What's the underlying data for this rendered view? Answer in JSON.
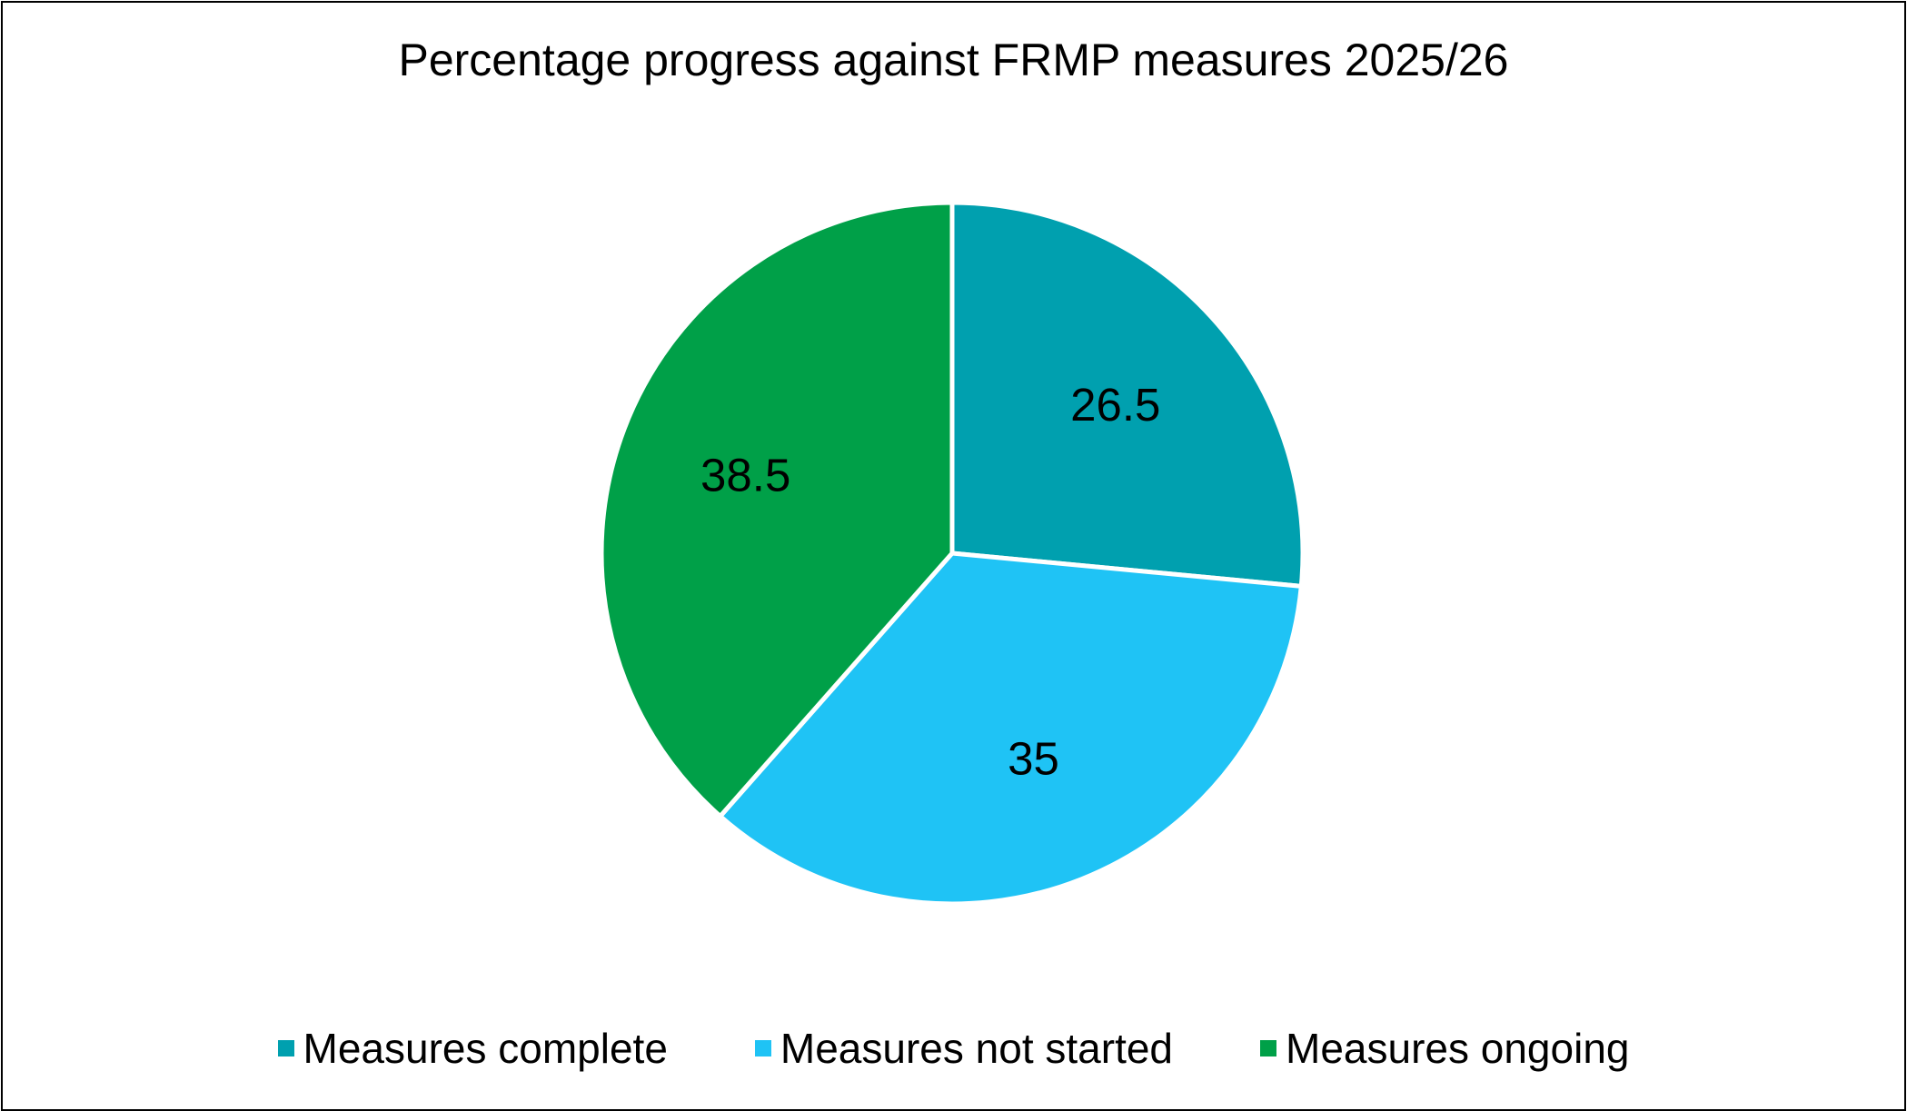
{
  "chart_data": {
    "type": "pie",
    "title": "Percentage progress against FRMP measures 2025/26",
    "categories": [
      "Measures complete",
      "Measures not started",
      "Measures ongoing"
    ],
    "values": [
      26.5,
      35,
      38.5
    ],
    "data_labels": [
      "26.5",
      "35",
      "38.5"
    ],
    "colors": [
      "#00A0AF",
      "#1FC3F5",
      "#00A048"
    ],
    "legend_position": "bottom",
    "start_angle": "12 o'clock, clockwise"
  }
}
